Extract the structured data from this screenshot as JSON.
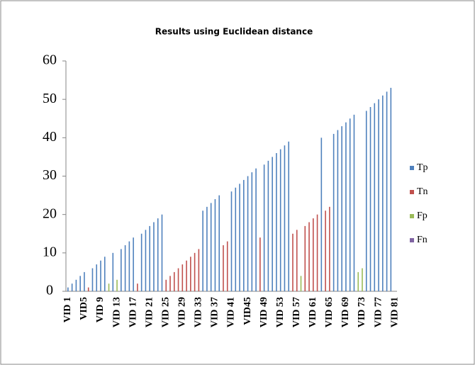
{
  "chart_data": {
    "type": "bar",
    "title": "Results using Euclidean distance",
    "categories": [
      "VID 1",
      null,
      null,
      null,
      "VID5",
      null,
      null,
      null,
      "VID 9",
      null,
      null,
      null,
      "VID 13",
      null,
      null,
      null,
      "VID 17",
      null,
      null,
      null,
      "VID 21",
      null,
      null,
      null,
      "VID 25",
      null,
      null,
      null,
      "VID 29",
      null,
      null,
      null,
      "VID 33",
      null,
      null,
      null,
      "VID 37",
      null,
      null,
      null,
      "VID 41",
      null,
      null,
      null,
      "VID45",
      null,
      null,
      null,
      "VID 49",
      null,
      null,
      null,
      "VID 53",
      null,
      null,
      null,
      "VID 57",
      null,
      null,
      null,
      "VID 61",
      null,
      null,
      null,
      "VID 65",
      null,
      null,
      null,
      "VID 69",
      null,
      null,
      null,
      "VID 73",
      null,
      null,
      null,
      "VID 77",
      null,
      null,
      null,
      "VID 81"
    ],
    "series": [
      {
        "name": "Tp",
        "color": "#4f81bd",
        "values": [
          1,
          2,
          3,
          4,
          5,
          null,
          6,
          7,
          8,
          9,
          null,
          10,
          null,
          11,
          12,
          13,
          14,
          null,
          15,
          16,
          17,
          18,
          19,
          20,
          null,
          null,
          null,
          null,
          null,
          null,
          null,
          null,
          null,
          21,
          22,
          23,
          24,
          25,
          null,
          null,
          26,
          27,
          28,
          29,
          30,
          31,
          32,
          null,
          33,
          34,
          35,
          36,
          37,
          38,
          39,
          null,
          null,
          null,
          null,
          null,
          null,
          null,
          40,
          null,
          null,
          41,
          42,
          43,
          44,
          45,
          46,
          null,
          null,
          47,
          48,
          49,
          50,
          51,
          52,
          53,
          null
        ]
      },
      {
        "name": "Tn",
        "color": "#c0504d",
        "values": [
          null,
          null,
          null,
          null,
          null,
          1,
          null,
          null,
          null,
          null,
          null,
          null,
          null,
          null,
          null,
          null,
          null,
          2,
          null,
          null,
          null,
          null,
          null,
          null,
          3,
          4,
          5,
          6,
          7,
          8,
          9,
          10,
          11,
          null,
          null,
          null,
          null,
          null,
          12,
          13,
          null,
          null,
          null,
          null,
          null,
          null,
          null,
          14,
          null,
          null,
          null,
          null,
          null,
          null,
          null,
          15,
          16,
          null,
          17,
          18,
          19,
          20,
          null,
          21,
          22,
          null,
          null,
          null,
          null,
          null,
          null,
          null,
          null,
          null,
          null,
          null,
          null,
          null,
          null,
          null,
          null
        ]
      },
      {
        "name": "Fp",
        "color": "#9bbb59",
        "values": [
          null,
          null,
          null,
          null,
          null,
          null,
          null,
          null,
          null,
          null,
          2,
          null,
          3,
          null,
          null,
          null,
          null,
          null,
          null,
          null,
          null,
          null,
          null,
          null,
          null,
          null,
          null,
          null,
          null,
          null,
          null,
          null,
          null,
          null,
          null,
          null,
          null,
          null,
          null,
          null,
          null,
          null,
          null,
          null,
          null,
          null,
          null,
          null,
          null,
          null,
          null,
          null,
          null,
          null,
          null,
          null,
          null,
          4,
          null,
          null,
          null,
          null,
          null,
          null,
          null,
          null,
          null,
          null,
          null,
          null,
          null,
          5,
          6,
          null,
          null,
          null,
          null,
          null,
          null,
          null,
          null
        ]
      },
      {
        "name": "Fn",
        "color": "#8064a2",
        "values": [
          null,
          null,
          null,
          null,
          null,
          null,
          null,
          null,
          null,
          null,
          null,
          null,
          null,
          null,
          null,
          null,
          null,
          null,
          null,
          null,
          null,
          null,
          null,
          null,
          null,
          null,
          null,
          null,
          null,
          null,
          null,
          null,
          null,
          null,
          null,
          null,
          null,
          null,
          null,
          null,
          null,
          null,
          null,
          null,
          null,
          null,
          null,
          null,
          null,
          null,
          null,
          null,
          null,
          null,
          null,
          null,
          null,
          null,
          null,
          null,
          null,
          null,
          null,
          null,
          null,
          null,
          null,
          null,
          null,
          null,
          null,
          null,
          null,
          null,
          null,
          null,
          null,
          null,
          null,
          null,
          null
        ]
      }
    ],
    "ylim": [
      0,
      60
    ],
    "yticks": [
      0,
      10,
      20,
      30,
      40,
      50,
      60
    ],
    "grid": false,
    "legend": "right"
  }
}
